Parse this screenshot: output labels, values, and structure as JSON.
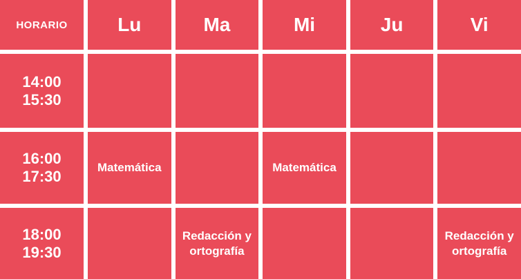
{
  "colors": {
    "cell_bg": "#ea4b59",
    "grid": "#ffffff",
    "text": "#ffffff"
  },
  "schedule": {
    "header": {
      "time_col": "HORARIO",
      "days": [
        "Lu",
        "Ma",
        "Mi",
        "Ju",
        "Vi"
      ]
    },
    "rows": [
      {
        "start": "14:00",
        "end": "15:30",
        "cells": [
          "",
          "",
          "",
          "",
          ""
        ]
      },
      {
        "start": "16:00",
        "end": "17:30",
        "cells": [
          "Matemática",
          "",
          "Matemática",
          "",
          ""
        ]
      },
      {
        "start": "18:00",
        "end": "19:30",
        "cells": [
          "",
          "Redacción y ortografía",
          "",
          "",
          "Redacción y ortografía"
        ]
      }
    ]
  }
}
